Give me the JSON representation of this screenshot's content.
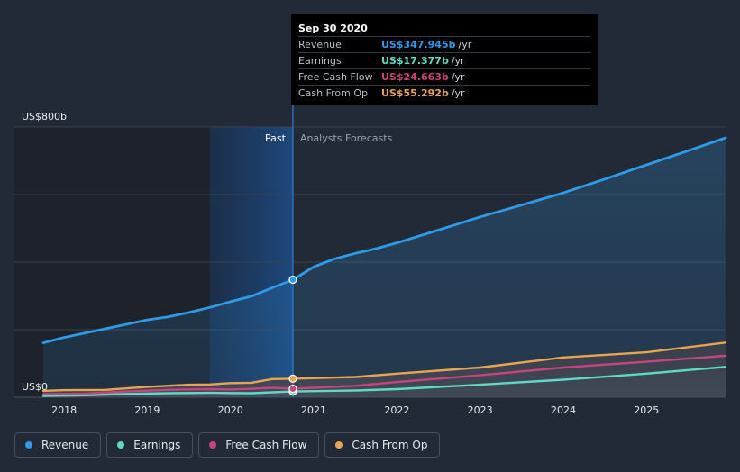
{
  "chart_data": {
    "type": "line",
    "x_ticks": [
      2018,
      2019,
      2020,
      2021,
      2022,
      2023,
      2024,
      2025
    ],
    "xlim": [
      2017.75,
      2025.95
    ],
    "ylim": [
      0,
      800
    ],
    "y_top_label": "US$800b",
    "y_bottom_label": "US$0",
    "y_unit": "US$ billions",
    "divider_x": 2020.75,
    "highlight_start_x": 2019.75,
    "past_label": "Past",
    "forecast_label": "Analysts Forecasts",
    "series": [
      {
        "name": "Revenue",
        "color": "#2f9ae6",
        "x": [
          2017.75,
          2018.0,
          2018.5,
          2019.0,
          2019.25,
          2019.5,
          2019.75,
          2020.0,
          2020.25,
          2020.5,
          2020.75,
          2021.0,
          2021.25,
          2021.5,
          2021.75,
          2022.0,
          2022.5,
          2023.0,
          2023.5,
          2024.0,
          2024.5,
          2025.0,
          2025.5,
          2025.95
        ],
        "values": [
          161,
          177,
          203,
          229,
          238,
          251,
          266,
          283,
          299,
          324,
          348,
          386,
          410,
          426,
          440,
          457,
          495,
          534,
          569,
          605,
          646,
          688,
          730,
          768
        ]
      },
      {
        "name": "Earnings",
        "color": "#5fd9c6",
        "x": [
          2017.75,
          2018.25,
          2018.75,
          2019.25,
          2019.75,
          2020.25,
          2020.75,
          2021.5,
          2022.0,
          2023.0,
          2024.0,
          2025.0,
          2025.95
        ],
        "values": [
          4,
          6,
          10,
          12,
          13,
          12,
          17,
          20,
          24,
          37,
          52,
          70,
          90
        ]
      },
      {
        "name": "Free Cash Flow",
        "color": "#c8447e",
        "x": [
          2017.75,
          2018.25,
          2018.75,
          2019.25,
          2019.75,
          2020.0,
          2020.25,
          2020.5,
          2020.75,
          2021.5,
          2022.0,
          2023.0,
          2024.0,
          2025.0,
          2025.95
        ],
        "values": [
          9,
          11,
          17,
          22,
          24,
          23,
          25,
          28,
          25,
          34,
          45,
          65,
          88,
          105,
          123
        ]
      },
      {
        "name": "Cash From Op",
        "color": "#e7a452",
        "x": [
          2017.75,
          2018.0,
          2018.5,
          2019.0,
          2019.5,
          2019.75,
          2020.0,
          2020.25,
          2020.5,
          2020.75,
          2021.5,
          2022.0,
          2023.0,
          2024.0,
          2025.0,
          2025.95
        ],
        "values": [
          19,
          21,
          22,
          31,
          37,
          38,
          42,
          43,
          54,
          55,
          60,
          70,
          88,
          118,
          133,
          162
        ]
      }
    ]
  },
  "tooltip": {
    "date": "Sep 30 2020",
    "unit": "/yr",
    "rows": [
      {
        "name": "Revenue",
        "value": "US$347.945b",
        "color": "#2f9ae6"
      },
      {
        "name": "Earnings",
        "value": "US$17.377b",
        "color": "#5fd9c6"
      },
      {
        "name": "Free Cash Flow",
        "value": "US$24.663b",
        "color": "#c8447e"
      },
      {
        "name": "Cash From Op",
        "value": "US$55.292b",
        "color": "#e7a452"
      }
    ]
  },
  "legend": {
    "items": [
      {
        "label": "Revenue",
        "color": "#2f9ae6"
      },
      {
        "label": "Earnings",
        "color": "#5fd9c6"
      },
      {
        "label": "Free Cash Flow",
        "color": "#c8447e"
      },
      {
        "label": "Cash From Op",
        "color": "#e7a452"
      }
    ]
  }
}
